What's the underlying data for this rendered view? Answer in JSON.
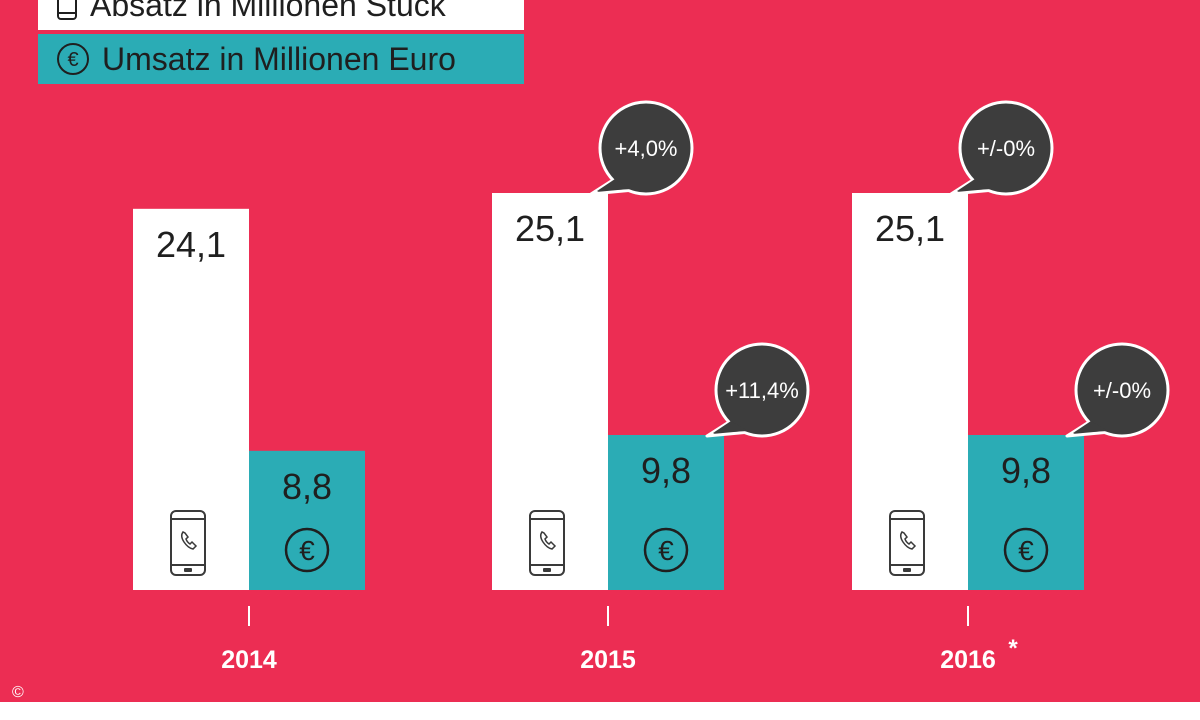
{
  "legend": [
    {
      "label": "Absatz in Millionen Stück",
      "icon": "phone-icon",
      "color": "#FFFFFF"
    },
    {
      "label": "Umsatz in Millionen Euro",
      "icon": "euro-icon",
      "color": "#2BACB5"
    }
  ],
  "background": "#EC2D53",
  "bubble_color": "#3D3D3D",
  "chart_data": {
    "type": "bar",
    "categories": [
      "2014",
      "2015",
      "2016"
    ],
    "category_footnotes": [
      "",
      "",
      "*"
    ],
    "series": [
      {
        "name": "Absatz in Millionen Stück",
        "values": [
          24.1,
          25.1,
          25.1
        ],
        "value_labels": [
          "24,1",
          "25,1",
          "25,1"
        ],
        "change_labels": [
          "",
          "+4,0%",
          "+/-0%"
        ],
        "icon": "phone-icon"
      },
      {
        "name": "Umsatz in Millionen Euro",
        "values": [
          8.8,
          9.8,
          9.8
        ],
        "value_labels": [
          "8,8",
          "9,8",
          "9,8"
        ],
        "change_labels": [
          "",
          "+11,4%",
          "+/-0%"
        ],
        "icon": "euro-icon"
      }
    ],
    "ylim": [
      0,
      25.1
    ],
    "grid": false,
    "legend_position": "top-left"
  },
  "copyright_symbol": "©"
}
